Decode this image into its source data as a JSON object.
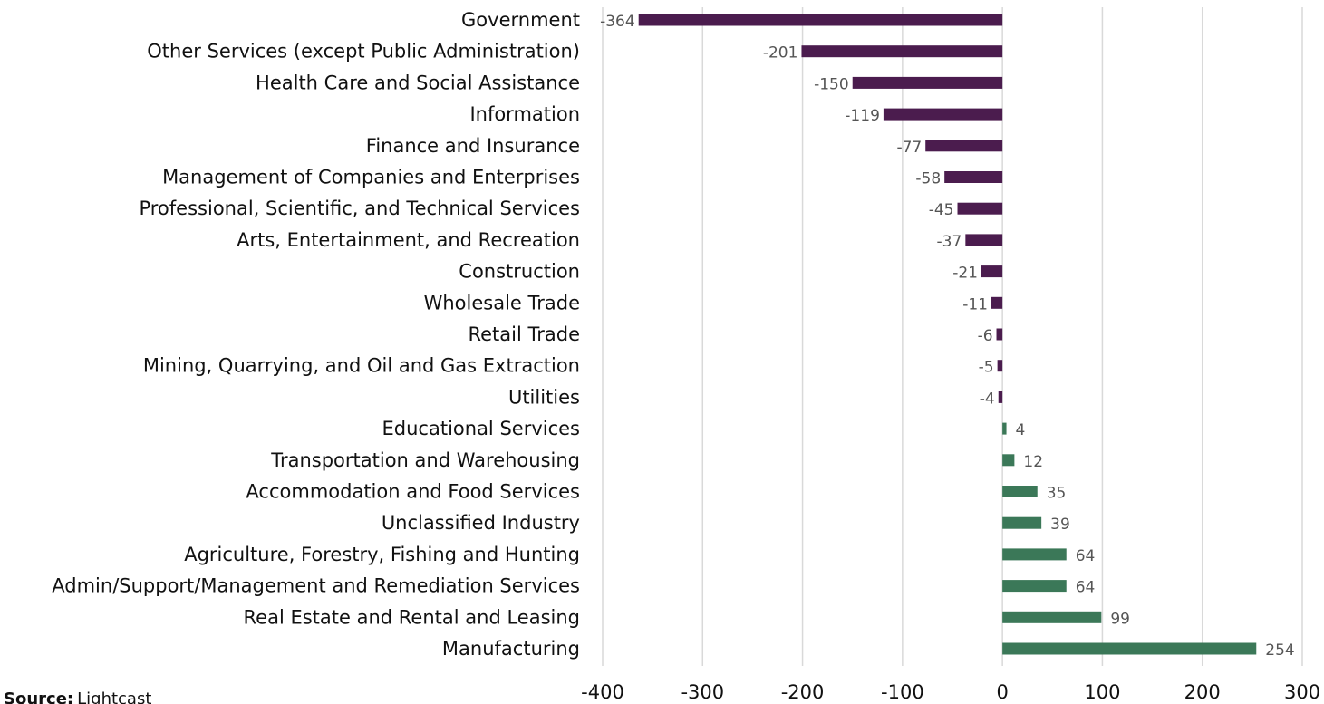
{
  "chart_data": {
    "type": "barh",
    "categories": [
      "Government",
      "Other Services (except Public Administration)",
      "Health Care and Social Assistance",
      "Information",
      "Finance and Insurance",
      "Management of Companies and Enterprises",
      "Professional, Scientific, and Technical Services",
      "Arts, Entertainment, and Recreation",
      "Construction",
      "Wholesale Trade",
      "Retail Trade",
      "Mining, Quarrying, and Oil and Gas Extraction",
      "Utilities",
      "Educational Services",
      "Transportation and Warehousing",
      "Accommodation and Food Services",
      "Unclassified Industry",
      "Agriculture, Forestry, Fishing and Hunting",
      "Admin/Support/Management and Remediation Services",
      "Real Estate and Rental and Leasing",
      "Manufacturing"
    ],
    "values": [
      -364,
      -201,
      -150,
      -119,
      -77,
      -58,
      -45,
      -37,
      -21,
      -11,
      -6,
      -5,
      -4,
      4,
      12,
      35,
      39,
      64,
      64,
      99,
      254
    ],
    "negative_color": "#4b1c4e",
    "positive_color": "#3b7858",
    "xlim": [
      -400,
      300
    ],
    "xticks": [
      -400,
      -300,
      -200,
      -100,
      0,
      100,
      200,
      300
    ],
    "grid": true,
    "source": {
      "label": "Source:",
      "text": "Lightcast"
    }
  }
}
